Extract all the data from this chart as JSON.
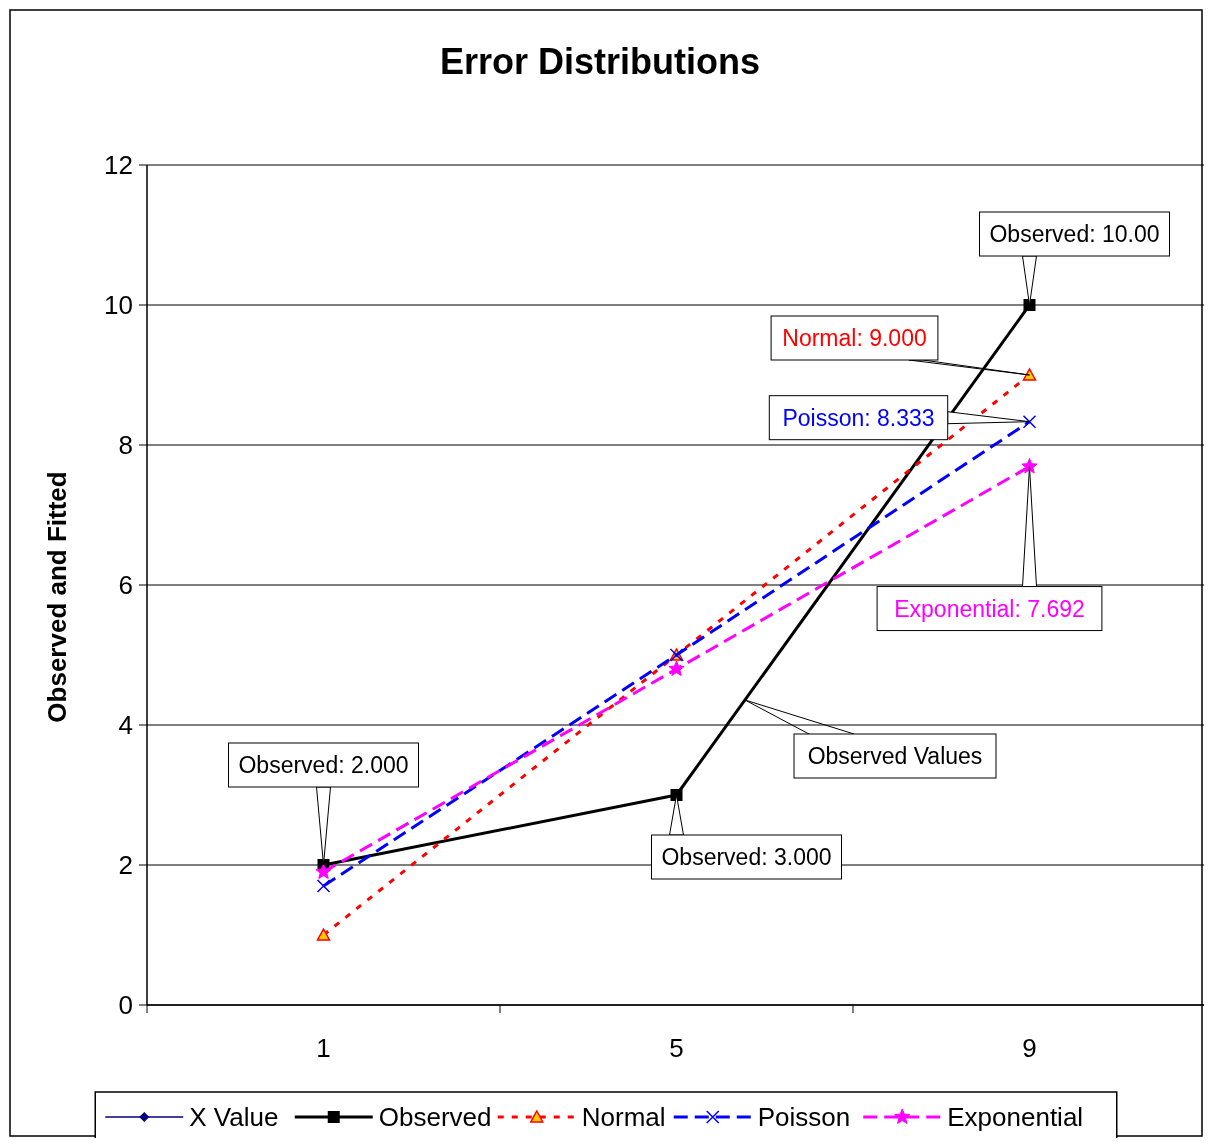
{
  "chart_data": {
    "type": "line",
    "title": "Error Distributions",
    "ylabel": "Observed and Fitted",
    "categories": [
      "1",
      "5",
      "9"
    ],
    "ylim": [
      0,
      12
    ],
    "yticks": [
      0,
      2,
      4,
      6,
      8,
      10,
      12
    ],
    "grid": "y",
    "legend": "bottom",
    "series": [
      {
        "name": "X Value",
        "color": "#000080",
        "values": [
          null,
          null,
          null
        ],
        "marker": "diamond",
        "line_style": "solid"
      },
      {
        "name": "Observed",
        "color": "#000000",
        "values": [
          2,
          3,
          10
        ],
        "marker": "square",
        "line_style": "solid"
      },
      {
        "name": "Normal",
        "color": "#ff0000",
        "values": [
          1,
          5,
          9
        ],
        "marker": "triangle",
        "line_style": "dotted"
      },
      {
        "name": "Poisson",
        "color": "#0000ff",
        "values": [
          1.7,
          5.0,
          8.333
        ],
        "marker": "cross",
        "line_style": "dashed"
      },
      {
        "name": "Exponential",
        "color": "#ff00ff",
        "values": [
          1.9,
          4.8,
          7.692
        ],
        "marker": "star",
        "line_style": "dashed"
      }
    ],
    "annotations": [
      {
        "text": "Observed: 2.000",
        "x": "1",
        "y": 2
      },
      {
        "text": "Observed: 3.000",
        "x": "5",
        "y": 3
      },
      {
        "text": "Observed: 10.00",
        "x": "9",
        "y": 10
      },
      {
        "text": "Normal: 9.000",
        "x": "9",
        "y": 9
      },
      {
        "text": "Poisson: 8.333",
        "x": "9",
        "y": 8.333
      },
      {
        "text": "Exponential: 7.692",
        "x": "9",
        "y": 7.692
      },
      "Observed Values"
    ]
  }
}
